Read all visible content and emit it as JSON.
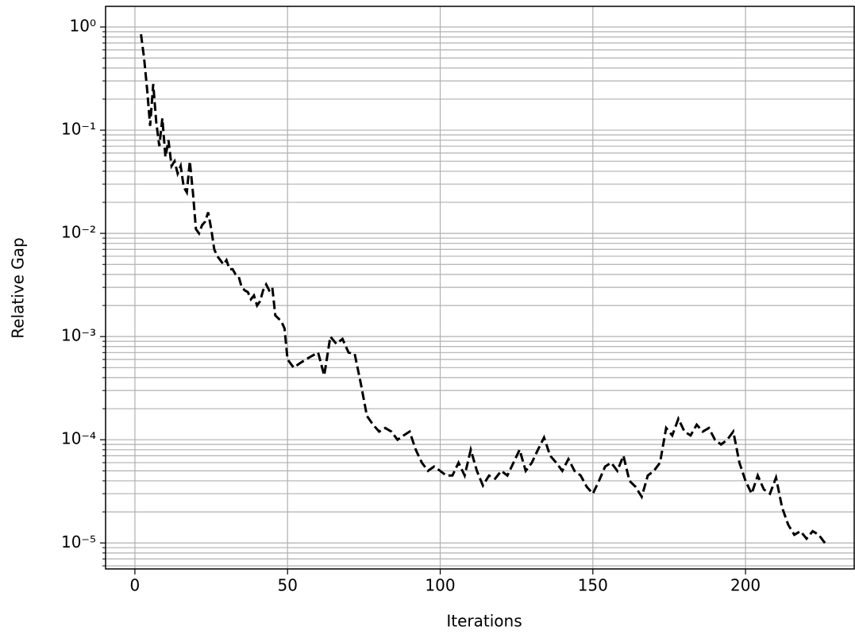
{
  "chart_data": {
    "type": "line",
    "x_label": "Iterations",
    "y_label": "Relative Gap",
    "x": [
      2,
      3,
      4,
      5,
      6,
      7,
      8,
      9,
      10,
      11,
      12,
      13,
      14,
      15,
      16,
      17,
      18,
      19,
      20,
      21,
      22,
      23,
      24,
      25,
      26,
      27,
      28,
      29,
      30,
      31,
      32,
      33,
      34,
      35,
      36,
      37,
      38,
      39,
      40,
      41,
      42,
      43,
      44,
      45,
      46,
      47,
      48,
      49,
      50,
      52,
      54,
      56,
      58,
      60,
      62,
      64,
      66,
      68,
      70,
      72,
      74,
      76,
      78,
      80,
      82,
      84,
      86,
      88,
      90,
      92,
      94,
      96,
      98,
      100,
      102,
      104,
      106,
      108,
      110,
      112,
      114,
      116,
      118,
      120,
      122,
      124,
      126,
      128,
      130,
      132,
      134,
      136,
      138,
      140,
      142,
      144,
      146,
      148,
      150,
      152,
      154,
      156,
      158,
      160,
      162,
      164,
      166,
      168,
      170,
      172,
      174,
      176,
      178,
      180,
      182,
      184,
      186,
      188,
      190,
      192,
      194,
      196,
      198,
      200,
      202,
      204,
      206,
      208,
      210,
      212,
      214,
      216,
      218,
      220,
      222,
      224,
      226
    ],
    "series": [
      {
        "color": "#000000",
        "values": [
          0.85,
          0.5,
          0.25,
          0.11,
          0.28,
          0.12,
          0.07,
          0.13,
          0.055,
          0.08,
          0.045,
          0.05,
          0.038,
          0.045,
          0.028,
          0.025,
          0.05,
          0.025,
          0.011,
          0.01,
          0.012,
          0.013,
          0.016,
          0.011,
          0.007,
          0.006,
          0.0055,
          0.005,
          0.0055,
          0.0045,
          0.0045,
          0.004,
          0.0038,
          0.003,
          0.0028,
          0.0027,
          0.0023,
          0.0025,
          0.002,
          0.0022,
          0.0028,
          0.0032,
          0.0028,
          0.003,
          0.0016,
          0.0015,
          0.0014,
          0.0012,
          0.0006,
          0.0005,
          0.00055,
          0.0006,
          0.00065,
          0.0007,
          0.00042,
          0.001,
          0.00085,
          0.00095,
          0.0007,
          0.00068,
          0.00035,
          0.00017,
          0.00014,
          0.00012,
          0.00013,
          0.00012,
          0.0001,
          0.00011,
          0.00012,
          8e-05,
          6e-05,
          5e-05,
          5.5e-05,
          5e-05,
          4.5e-05,
          4.5e-05,
          6e-05,
          4.5e-05,
          8e-05,
          5e-05,
          3.6e-05,
          4.5e-05,
          4.2e-05,
          5e-05,
          4.5e-05,
          6e-05,
          8e-05,
          5e-05,
          6e-05,
          8e-05,
          0.000105,
          7e-05,
          6e-05,
          5e-05,
          6.5e-05,
          5e-05,
          4.5e-05,
          3.5e-05,
          3e-05,
          4e-05,
          5.5e-05,
          6e-05,
          5e-05,
          7e-05,
          4e-05,
          3.5e-05,
          2.8e-05,
          4.5e-05,
          5e-05,
          6e-05,
          0.00013,
          0.00011,
          0.00016,
          0.00012,
          0.00011,
          0.00014,
          0.00012,
          0.00013,
          0.0001,
          9e-05,
          0.0001,
          0.00012,
          6e-05,
          4e-05,
          3e-05,
          4.5e-05,
          3.3e-05,
          3e-05,
          4.3e-05,
          2.2e-05,
          1.5e-05,
          1.2e-05,
          1.3e-05,
          1.1e-05,
          1.3e-05,
          1.2e-05,
          1e-05
        ]
      }
    ],
    "xlim": [
      -9.6,
      235.6
    ],
    "xticks": [
      0,
      50,
      100,
      150,
      200
    ],
    "ylim": [
      1.585,
      5.6e-06
    ],
    "log_y": true,
    "yticks": [
      {
        "value": 1,
        "label": "10⁰"
      },
      {
        "value": 0.1,
        "label": "10⁻¹"
      },
      {
        "value": 0.01,
        "label": "10⁻²"
      },
      {
        "value": 0.001,
        "label": "10⁻³"
      },
      {
        "value": 0.0001,
        "label": "10⁻⁴"
      },
      {
        "value": 1e-05,
        "label": "10⁻⁵"
      }
    ],
    "yminorticks": [
      6e-06,
      7e-06,
      8e-06,
      9e-06,
      2e-05,
      3e-05,
      4e-05,
      5e-05,
      6e-05,
      7e-05,
      8e-05,
      9e-05,
      0.0002,
      0.0003,
      0.0004,
      0.0005,
      0.0006,
      0.0007,
      0.0008,
      0.0009,
      0.002,
      0.003,
      0.004,
      0.005,
      0.006,
      0.007,
      0.008,
      0.009,
      0.02,
      0.03,
      0.04,
      0.05,
      0.06,
      0.07,
      0.08,
      0.09,
      0.2,
      0.3,
      0.4,
      0.5,
      0.6,
      0.7,
      0.8,
      0.9
    ],
    "grid": true,
    "line_style": "dashed"
  }
}
